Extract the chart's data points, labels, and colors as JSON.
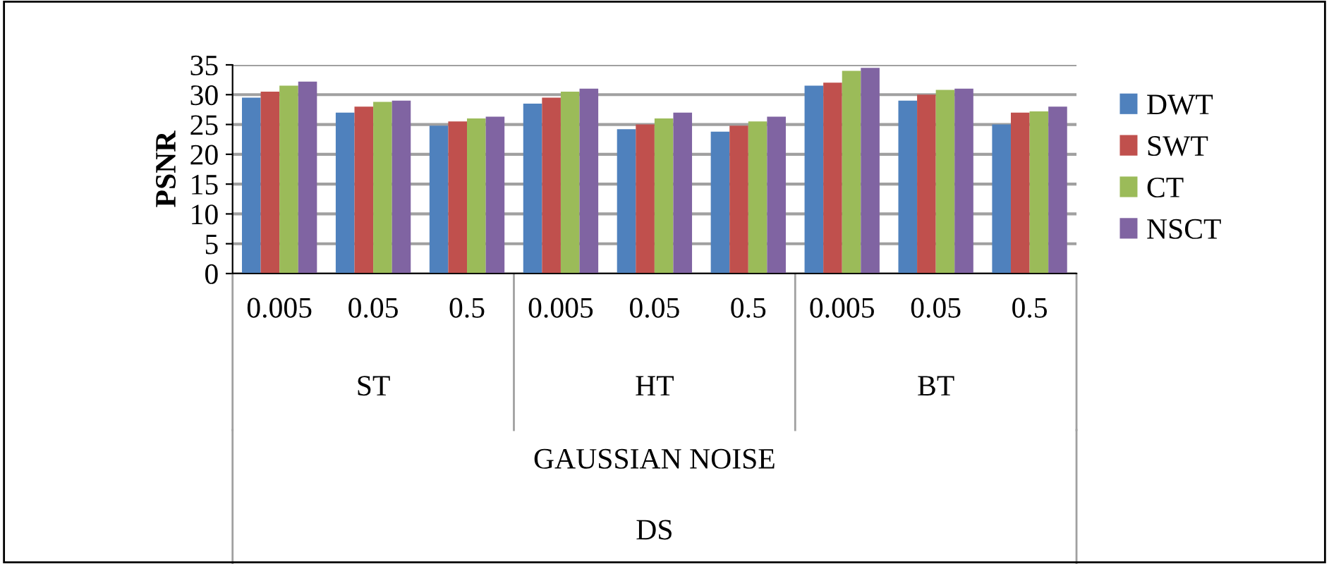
{
  "chart_data": {
    "type": "bar",
    "ylabel": "PSNR",
    "categories": [
      "0.005",
      "0.05",
      "0.5",
      "0.005",
      "0.05",
      "0.5",
      "0.005",
      "0.05",
      "0.5"
    ],
    "series": [
      {
        "name": "DWT",
        "color": "#4f81bd",
        "values": [
          29.5,
          27,
          24.8,
          28.5,
          24.2,
          23.8,
          31.5,
          29,
          25
        ]
      },
      {
        "name": "SWT",
        "color": "#c0504d",
        "values": [
          30.5,
          28,
          25.5,
          29.5,
          25,
          24.8,
          32,
          30,
          27
        ]
      },
      {
        "name": "CT",
        "color": "#9bbb59",
        "values": [
          31.5,
          28.8,
          26,
          30.5,
          26,
          25.5,
          34,
          30.8,
          27.2
        ]
      },
      {
        "name": "NSCT",
        "color": "#8064a2",
        "values": [
          32.2,
          29,
          26.3,
          31,
          27,
          26.3,
          34.5,
          31,
          28
        ]
      }
    ],
    "annotations": [
      "ST",
      "HT",
      "BT",
      "GAUSSIAN NOISE",
      "DS"
    ],
    "ylim": [
      0,
      35
    ],
    "yticks": [
      0,
      5,
      10,
      15,
      20,
      25,
      30,
      35
    ],
    "grid": "y",
    "legend": "right"
  }
}
